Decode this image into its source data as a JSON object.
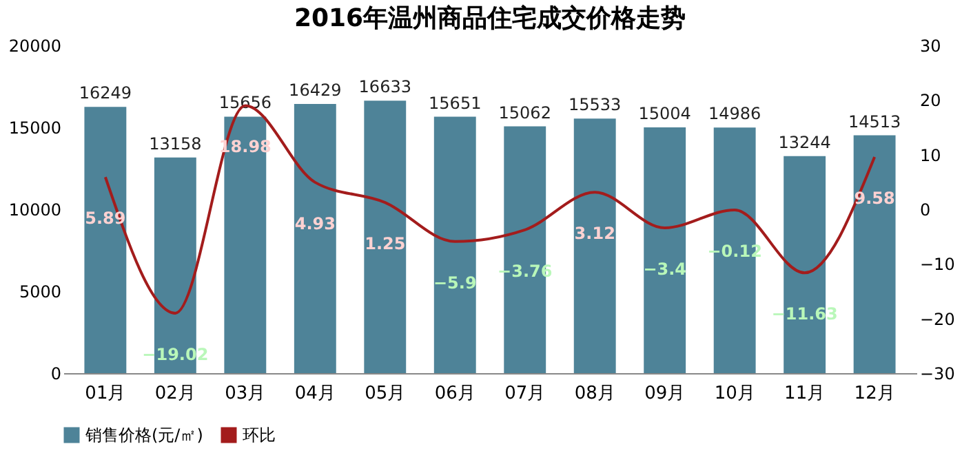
{
  "chart_data": {
    "type": "bar",
    "title": "2016年温州商品住宅成交价格走势",
    "categories": [
      "01月",
      "02月",
      "03月",
      "04月",
      "05月",
      "06月",
      "07月",
      "08月",
      "09月",
      "10月",
      "11月",
      "12月"
    ],
    "series": [
      {
        "name": "销售价格(元/㎡)",
        "color": "#4e8398",
        "values": [
          16249,
          13158,
          15656,
          16429,
          16633,
          15651,
          15062,
          15533,
          15004,
          14986,
          13244,
          14513
        ]
      },
      {
        "name": "环比",
        "type": "line",
        "axis": "y2",
        "color": "#a31c1c",
        "values": [
          5.89,
          -19.02,
          18.98,
          4.93,
          1.25,
          -5.9,
          -3.76,
          3.12,
          -3.4,
          -0.12,
          -11.63,
          9.58
        ]
      }
    ],
    "ylim": [
      0,
      20000
    ],
    "yticks": [
      0,
      5000,
      10000,
      15000,
      20000
    ],
    "y2lim": [
      -30,
      30
    ],
    "y2ticks": [
      -30,
      -20,
      -10,
      0,
      10,
      20,
      30
    ],
    "data_labels": true,
    "grid": false,
    "legend": "bottom"
  }
}
